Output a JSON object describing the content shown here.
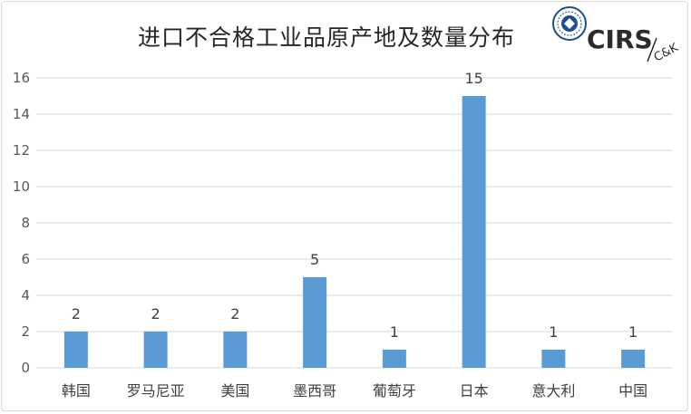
{
  "chart_data": {
    "type": "bar",
    "title": "进口不合格工业品原产地及数量分布",
    "categories": [
      "韩国",
      "罗马尼亚",
      "美国",
      "墨西哥",
      "葡萄牙",
      "日本",
      "意大利",
      "中国"
    ],
    "values": [
      2,
      2,
      2,
      5,
      1,
      15,
      1,
      1
    ],
    "ylim": [
      0,
      16
    ],
    "yticks": [
      0,
      2,
      4,
      6,
      8,
      10,
      12,
      14,
      16
    ],
    "data_labels": true,
    "grid": true,
    "colors": {
      "bar": "#5b9bd5",
      "grid": "#d9d9d9",
      "text": "#404040"
    }
  },
  "logo": {
    "brand": "CIRS",
    "sub": "C&K",
    "colors": {
      "seal": "#1f4e8c",
      "text": "#2b2b2b",
      "accent": "#c00000"
    }
  }
}
